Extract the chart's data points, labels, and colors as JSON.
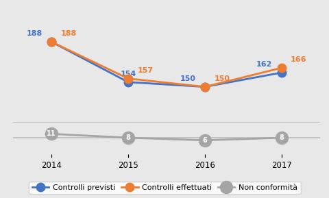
{
  "years": [
    2014,
    2015,
    2016,
    2017
  ],
  "controlli_previsti": [
    188,
    154,
    150,
    162
  ],
  "controlli_effettuati": [
    188,
    157,
    150,
    166
  ],
  "non_conformita": [
    11,
    8,
    6,
    8
  ],
  "color_previsti": "#4472C4",
  "color_effettuati": "#ED7D31",
  "color_non_conformita": "#A5A5A5",
  "label_previsti": "Controlli previsti",
  "label_effettuati": "Controlli effettuati",
  "label_non_conformita": "Non conformità",
  "background_color": "#E8E8E8",
  "grid_color": "#FFFFFF",
  "marker_size": 9,
  "linewidth": 2.0,
  "annot_fontsize": 8,
  "tick_fontsize": 8.5,
  "legend_fontsize": 8
}
